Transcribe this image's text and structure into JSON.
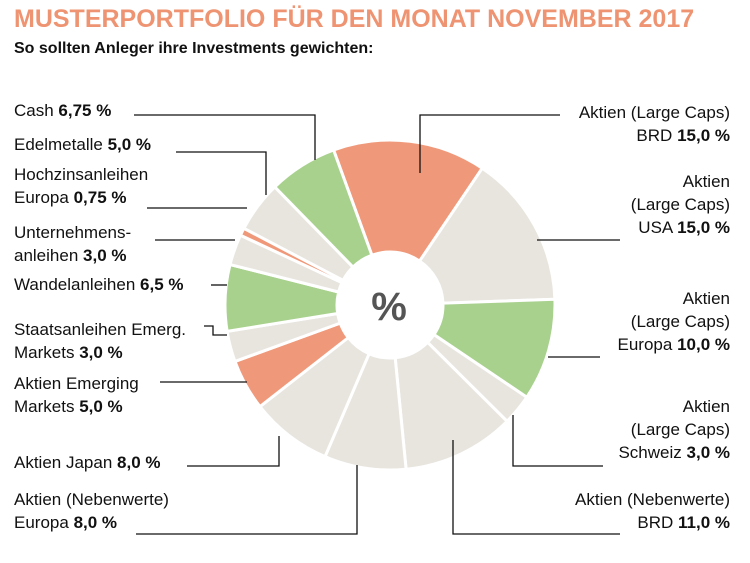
{
  "header": {
    "title": "MUSTERPORTFOLIO FÜR DEN MONAT NOVEMBER 2017",
    "subtitle": "So sollten Anleger ihre Investments gewichten:"
  },
  "center_label": "%",
  "colors": {
    "green": "#a9d18e",
    "salmon": "#f0997a",
    "beige": "#e8e5df",
    "title": "#ef9472"
  },
  "chart_data": {
    "type": "pie",
    "title": "MUSTERPORTFOLIO FÜR DEN MONAT NOVEMBER 2017",
    "subtitle": "So sollten Anleger ihre Investments gewichten:",
    "unit": "%",
    "slices": [
      {
        "label_lines": [
          "Aktien (Large Caps)",
          "BRD"
        ],
        "value": 15.0,
        "value_text": "15,0 %",
        "color": "#f0997a"
      },
      {
        "label_lines": [
          "Aktien",
          "(Large Caps)",
          "USA"
        ],
        "value": 15.0,
        "value_text": "15,0 %",
        "color": "#e8e5df"
      },
      {
        "label_lines": [
          "Aktien",
          "(Large Caps)",
          "Europa"
        ],
        "value": 10.0,
        "value_text": "10,0 %",
        "color": "#a9d18e"
      },
      {
        "label_lines": [
          "Aktien",
          "(Large Caps)",
          "Schweiz"
        ],
        "value": 3.0,
        "value_text": "3,0 %",
        "color": "#e8e5df"
      },
      {
        "label_lines": [
          "Aktien (Nebenwerte)",
          "BRD"
        ],
        "value": 11.0,
        "value_text": "11,0 %",
        "color": "#e8e5df"
      },
      {
        "label_lines": [
          "Aktien (Nebenwerte)",
          "Europa"
        ],
        "value": 8.0,
        "value_text": "8,0 %",
        "color": "#e8e5df"
      },
      {
        "label_lines": [
          "Aktien Japan"
        ],
        "value": 8.0,
        "value_text": "8,0 %",
        "color": "#e8e5df"
      },
      {
        "label_lines": [
          "Aktien Emerging",
          "Markets"
        ],
        "value": 5.0,
        "value_text": "5,0 %",
        "color": "#f0997a"
      },
      {
        "label_lines": [
          "Staatsanleihen Emerg.",
          "Markets"
        ],
        "value": 3.0,
        "value_text": "3,0 %",
        "color": "#e8e5df"
      },
      {
        "label_lines": [
          "Wandelanleihen"
        ],
        "value": 6.5,
        "value_text": "6,5 %",
        "color": "#a9d18e"
      },
      {
        "label_lines": [
          "Unternehmens-",
          "anleihen"
        ],
        "value": 3.0,
        "value_text": "3,0 %",
        "color": "#e8e5df"
      },
      {
        "label_lines": [
          "Hochzinsanleihen",
          "Europa"
        ],
        "value": 0.75,
        "value_text": "0,75 %",
        "color": "#f0997a"
      },
      {
        "label_lines": [
          "Edelmetalle"
        ],
        "value": 5.0,
        "value_text": "5,0 %",
        "color": "#e8e5df"
      },
      {
        "label_lines": [
          "Cash"
        ],
        "value": 6.75,
        "value_text": "6,75 %",
        "color": "#a9d18e"
      }
    ]
  }
}
